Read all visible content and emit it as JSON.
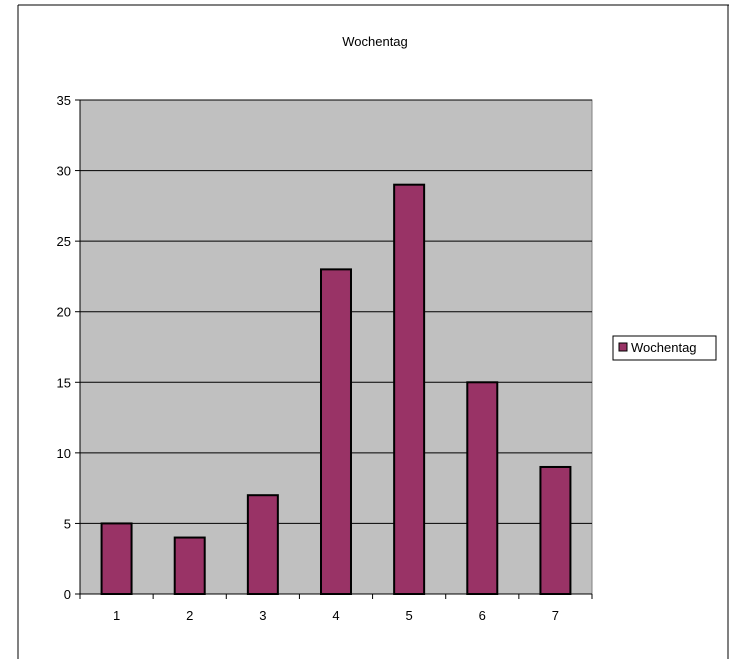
{
  "chart_data": {
    "type": "bar",
    "title": "Wochentag",
    "xlabel": "",
    "ylabel": "",
    "categories": [
      "1",
      "2",
      "3",
      "4",
      "5",
      "6",
      "7"
    ],
    "series": [
      {
        "name": "Wochentag",
        "values": [
          5,
          4,
          7,
          23,
          29,
          15,
          9
        ],
        "color": "#993366"
      }
    ],
    "ylim": [
      0,
      35
    ],
    "yticks": [
      0,
      5,
      10,
      15,
      20,
      25,
      30,
      35
    ],
    "grid": true,
    "legend": "right",
    "plot_background": "#c0c0c0"
  }
}
